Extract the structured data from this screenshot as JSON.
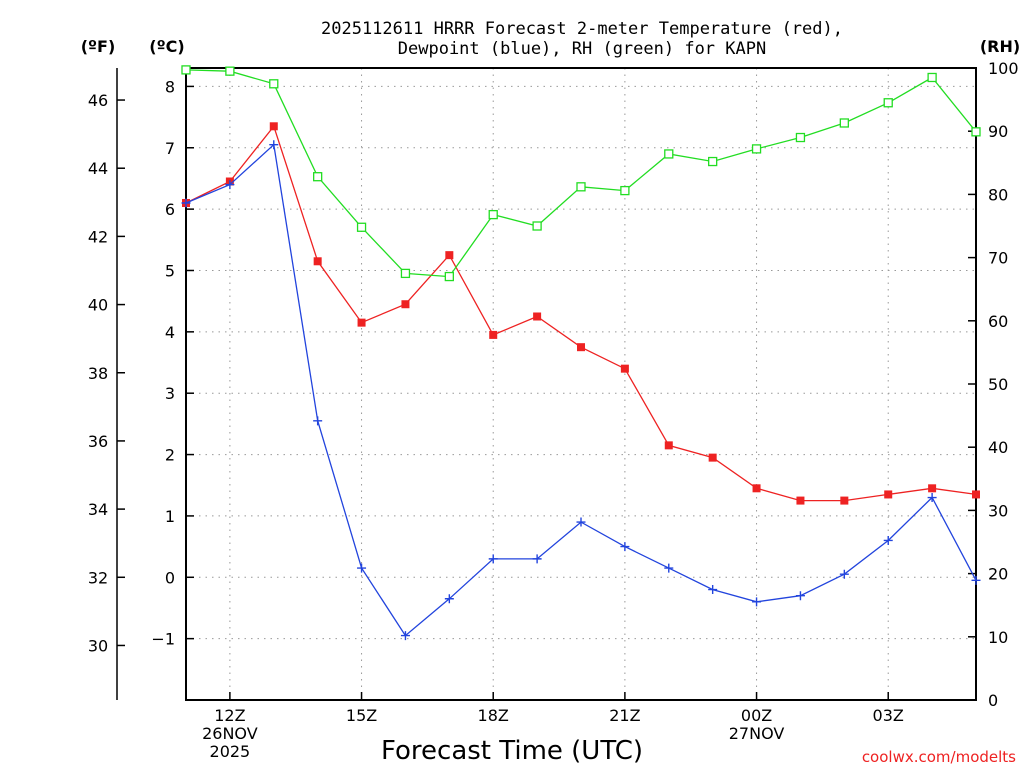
{
  "chart_data": {
    "type": "line",
    "title_line1": "2025112611 HRRR Forecast 2-meter Temperature (red),",
    "title_line2": "Dewpoint (blue), RH (green) for KAPN",
    "left_axis_f_label": "(ºF)",
    "left_axis_c_label": "(ºC)",
    "right_axis_label": "(RH)",
    "xlabel": "Forecast Time (UTC)",
    "watermark": "coolwx.com/modelts",
    "xlim_hours": [
      11,
      29
    ],
    "celsius_ylim": [
      -2,
      8.3
    ],
    "rh_ylim": [
      0,
      100
    ],
    "fahrenheit_ticks": [
      {
        "value": 46,
        "label": "46"
      },
      {
        "value": 44,
        "label": "44"
      },
      {
        "value": 42,
        "label": "42"
      },
      {
        "value": 40,
        "label": "40"
      },
      {
        "value": 38,
        "label": "38"
      },
      {
        "value": 36,
        "label": "36"
      },
      {
        "value": 34,
        "label": "34"
      },
      {
        "value": 32,
        "label": "32"
      },
      {
        "value": 30,
        "label": "30"
      }
    ],
    "celsius_ticks": [
      {
        "value": 8,
        "label": "8"
      },
      {
        "value": 7,
        "label": "7"
      },
      {
        "value": 6,
        "label": "6"
      },
      {
        "value": 5,
        "label": "5"
      },
      {
        "value": 4,
        "label": "4"
      },
      {
        "value": 3,
        "label": "3"
      },
      {
        "value": 2,
        "label": "2"
      },
      {
        "value": 1,
        "label": "1"
      },
      {
        "value": 0,
        "label": "0"
      },
      {
        "value": -1,
        "label": "−1"
      }
    ],
    "rh_ticks": [
      {
        "value": 100,
        "label": "100"
      },
      {
        "value": 90,
        "label": "90"
      },
      {
        "value": 80,
        "label": "80"
      },
      {
        "value": 70,
        "label": "70"
      },
      {
        "value": 60,
        "label": "60"
      },
      {
        "value": 50,
        "label": "50"
      },
      {
        "value": 40,
        "label": "40"
      },
      {
        "value": 30,
        "label": "30"
      },
      {
        "value": 20,
        "label": "20"
      },
      {
        "value": 10,
        "label": "10"
      },
      {
        "value": 0,
        "label": "0"
      }
    ],
    "x_ticks": [
      {
        "hour": 12,
        "lines": [
          "12Z",
          "26NOV",
          "2025"
        ]
      },
      {
        "hour": 15,
        "lines": [
          "15Z"
        ]
      },
      {
        "hour": 18,
        "lines": [
          "18Z"
        ]
      },
      {
        "hour": 21,
        "lines": [
          "21Z"
        ]
      },
      {
        "hour": 24,
        "lines": [
          "00Z",
          "27NOV"
        ]
      },
      {
        "hour": 27,
        "lines": [
          "03Z"
        ]
      }
    ],
    "x": [
      11,
      12,
      13,
      14,
      15,
      16,
      17,
      18,
      19,
      20,
      21,
      22,
      23,
      24,
      25,
      26,
      27,
      28,
      29
    ],
    "series": [
      {
        "name": "Temperature",
        "color": "#ee2222",
        "marker": "filled-square",
        "axis": "celsius",
        "values": [
          6.1,
          6.45,
          7.35,
          5.15,
          4.15,
          4.45,
          5.25,
          3.95,
          4.25,
          3.75,
          3.4,
          2.15,
          1.95,
          1.45,
          1.25,
          1.25,
          1.35,
          1.45,
          1.35
        ]
      },
      {
        "name": "Dewpoint",
        "color": "#2244dd",
        "marker": "plus",
        "axis": "celsius",
        "values": [
          6.1,
          6.4,
          7.05,
          2.55,
          0.15,
          -0.95,
          -0.35,
          0.3,
          0.3,
          0.9,
          0.5,
          0.15,
          -0.2,
          -0.4,
          -0.3,
          0.05,
          0.6,
          1.3,
          -0.05
        ]
      },
      {
        "name": "RH",
        "color": "#22dd22",
        "marker": "open-square",
        "axis": "rh",
        "values": [
          99.7,
          99.5,
          97.5,
          82.8,
          74.8,
          67.5,
          67,
          76.8,
          75,
          81.2,
          80.6,
          86.4,
          85.2,
          87.2,
          89,
          91.3,
          94.5,
          98.5,
          89.9
        ]
      }
    ]
  }
}
